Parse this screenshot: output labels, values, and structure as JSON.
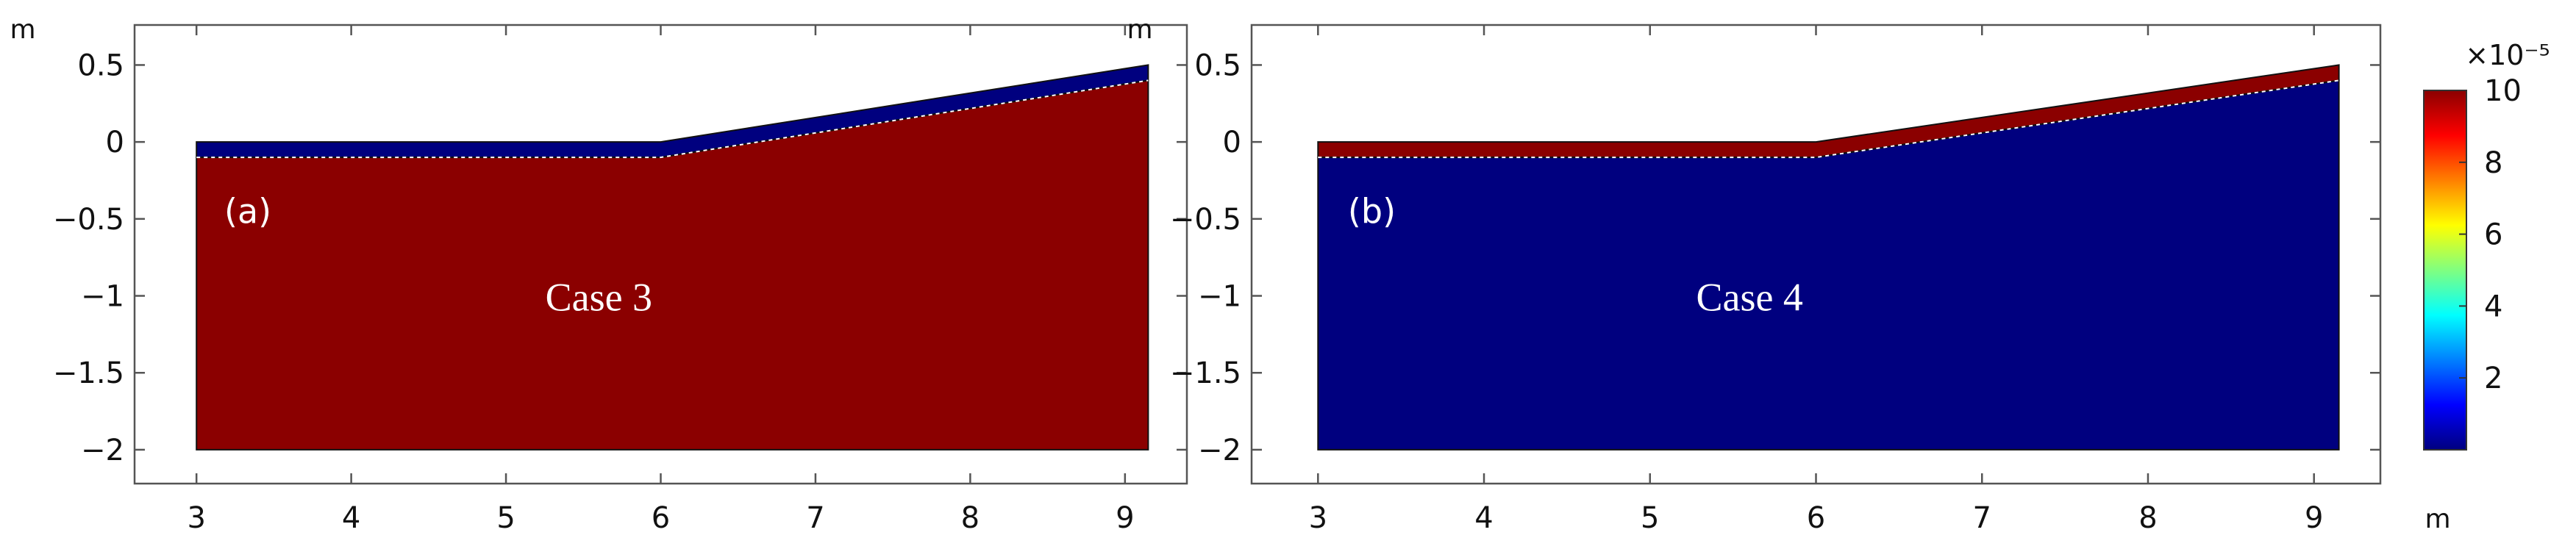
{
  "chart_data": [
    {
      "type": "heatmap",
      "panel_label": "(a)",
      "annotation": "Case 3",
      "xlabel": "",
      "ylabel": "m",
      "xlim": [
        2.6,
        9.4
      ],
      "ylim": [
        -2.22,
        0.76
      ],
      "xticks": [
        3,
        4,
        5,
        6,
        7,
        8,
        9
      ],
      "yticks": [
        0.5,
        0,
        -0.5,
        -1,
        -1.5,
        -2
      ],
      "ytick_labels": [
        "0.5",
        "0",
        "−0.5",
        "−1",
        "−1.5",
        "−2"
      ],
      "grid": false,
      "regions": [
        {
          "name": "upper layer",
          "value": 0,
          "color": "#00007f",
          "boundary": [
            [
              3,
              0
            ],
            [
              6,
              0
            ],
            [
              9.15,
              0.5
            ],
            [
              9.15,
              0.4
            ],
            [
              6,
              -0.1
            ],
            [
              3,
              -0.1
            ]
          ]
        },
        {
          "name": "lower layer",
          "value": 0.0001,
          "color": "#8b0000",
          "boundary": [
            [
              3,
              -0.1
            ],
            [
              6,
              -0.1
            ],
            [
              9.15,
              0.4
            ],
            [
              9.15,
              -2
            ],
            [
              3,
              -2
            ]
          ]
        }
      ],
      "interface": [
        [
          3,
          -0.1
        ],
        [
          6,
          -0.1
        ],
        [
          9.15,
          0.4
        ]
      ]
    },
    {
      "type": "heatmap",
      "panel_label": "(b)",
      "annotation": "Case 4",
      "xlabel": "m",
      "ylabel": "m",
      "xlim": [
        2.6,
        9.4
      ],
      "ylim": [
        -2.22,
        0.76
      ],
      "xticks": [
        3,
        4,
        5,
        6,
        7,
        8,
        9
      ],
      "yticks": [
        0.5,
        0,
        -0.5,
        -1,
        -1.5,
        -2
      ],
      "ytick_labels": [
        "0.5",
        "0",
        "−0.5",
        "−1",
        "−1.5",
        "−2"
      ],
      "grid": false,
      "regions": [
        {
          "name": "upper layer",
          "value": 0.0001,
          "color": "#8b0000",
          "boundary": [
            [
              3,
              0
            ],
            [
              6,
              0
            ],
            [
              9.15,
              0.5
            ],
            [
              9.15,
              0.4
            ],
            [
              6,
              -0.1
            ],
            [
              3,
              -0.1
            ]
          ]
        },
        {
          "name": "lower layer",
          "value": 0,
          "color": "#00007f",
          "boundary": [
            [
              3,
              -0.1
            ],
            [
              6,
              -0.1
            ],
            [
              9.15,
              0.4
            ],
            [
              9.15,
              -2
            ],
            [
              3,
              -2
            ]
          ]
        }
      ],
      "interface": [
        [
          3,
          -0.1
        ],
        [
          6,
          -0.1
        ],
        [
          9.15,
          0.4
        ]
      ]
    }
  ],
  "colorbar": {
    "exponent_label": "×10⁻⁵",
    "min": 0,
    "max": 10,
    "ticks": [
      10,
      8,
      6,
      4,
      2
    ],
    "colormap": "rainbow",
    "stops": [
      "#00007f",
      "#0000ff",
      "#0080ff",
      "#00ffff",
      "#80ff80",
      "#ffff00",
      "#ff8000",
      "#ff0000",
      "#8b0000"
    ]
  }
}
